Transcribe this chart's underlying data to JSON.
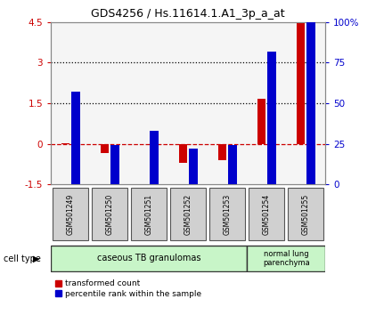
{
  "title": "GDS4256 / Hs.11614.1.A1_3p_a_at",
  "samples": [
    "GSM501249",
    "GSM501250",
    "GSM501251",
    "GSM501252",
    "GSM501253",
    "GSM501254",
    "GSM501255"
  ],
  "red_values": [
    0.02,
    -0.35,
    -0.03,
    -0.72,
    -0.6,
    1.65,
    4.45
  ],
  "blue_values_pct": [
    57,
    24,
    33,
    22,
    24,
    82,
    100
  ],
  "ylim_left": [
    -1.5,
    4.5
  ],
  "ylim_right": [
    0,
    100
  ],
  "yticks_left": [
    -1.5,
    0,
    1.5,
    3.0,
    4.5
  ],
  "yticks_right": [
    0,
    25,
    50,
    75,
    100
  ],
  "ytick_labels_left": [
    "-1.5",
    "0",
    "1.5",
    "3",
    "4.5"
  ],
  "ytick_labels_right": [
    "0",
    "25",
    "50",
    "75",
    "100%"
  ],
  "hlines": [
    1.5,
    3.0
  ],
  "zero_line": 0,
  "group1_label": "caseous TB granulomas",
  "group2_label": "normal lung\nparenchyma",
  "group1_color": "#c8f5c8",
  "group2_color": "#c8f5c8",
  "cell_type_label": "cell type",
  "bar_width": 0.22,
  "red_color": "#cc0000",
  "blue_color": "#0000cc",
  "bg_color": "#ffffff",
  "plot_bg": "#f5f5f5",
  "legend_red": "transformed count",
  "legend_blue": "percentile rank within the sample",
  "right_axis_color": "#0000cc",
  "left_axis_color": "#cc0000",
  "tick_bg": "#d0d0d0",
  "spine_color": "#888888"
}
